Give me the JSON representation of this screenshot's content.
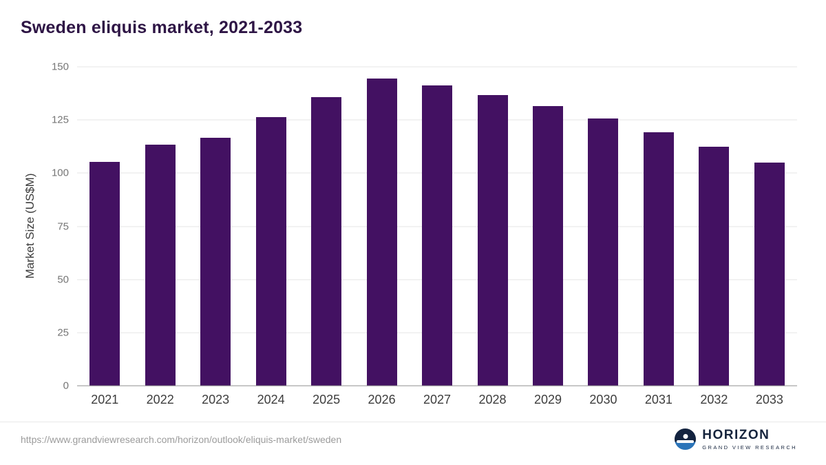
{
  "title": "Sweden eliquis market, 2021-2033",
  "chart_data": {
    "type": "bar",
    "title": "Sweden eliquis market, 2021-2033",
    "categories": [
      "2021",
      "2022",
      "2023",
      "2024",
      "2025",
      "2026",
      "2027",
      "2028",
      "2029",
      "2030",
      "2031",
      "2032",
      "2033"
    ],
    "values": [
      105.2,
      113.5,
      116.5,
      126.3,
      135.8,
      144.6,
      141.2,
      136.8,
      131.5,
      125.7,
      119.2,
      112.4,
      105.0
    ],
    "xlabel": "",
    "ylabel": "Market Size (US$M)",
    "ylim": [
      0,
      150
    ],
    "yticks": [
      0,
      25,
      50,
      75,
      100,
      125,
      150
    ],
    "bar_color": "#431162",
    "grid": true,
    "legend": "none"
  },
  "footer": {
    "source_url": "https://www.grandviewresearch.com/horizon/outlook/eliquis-market/sweden",
    "logo_title": "HORIZON",
    "logo_subtitle": "GRAND VIEW RESEARCH"
  },
  "colors": {
    "title_text": "#2e1545",
    "bar": "#431162",
    "axis_text": "#757575",
    "gridline": "#e4e4e4",
    "logo_navy": "#13233f",
    "logo_blue": "#2b74b8"
  }
}
